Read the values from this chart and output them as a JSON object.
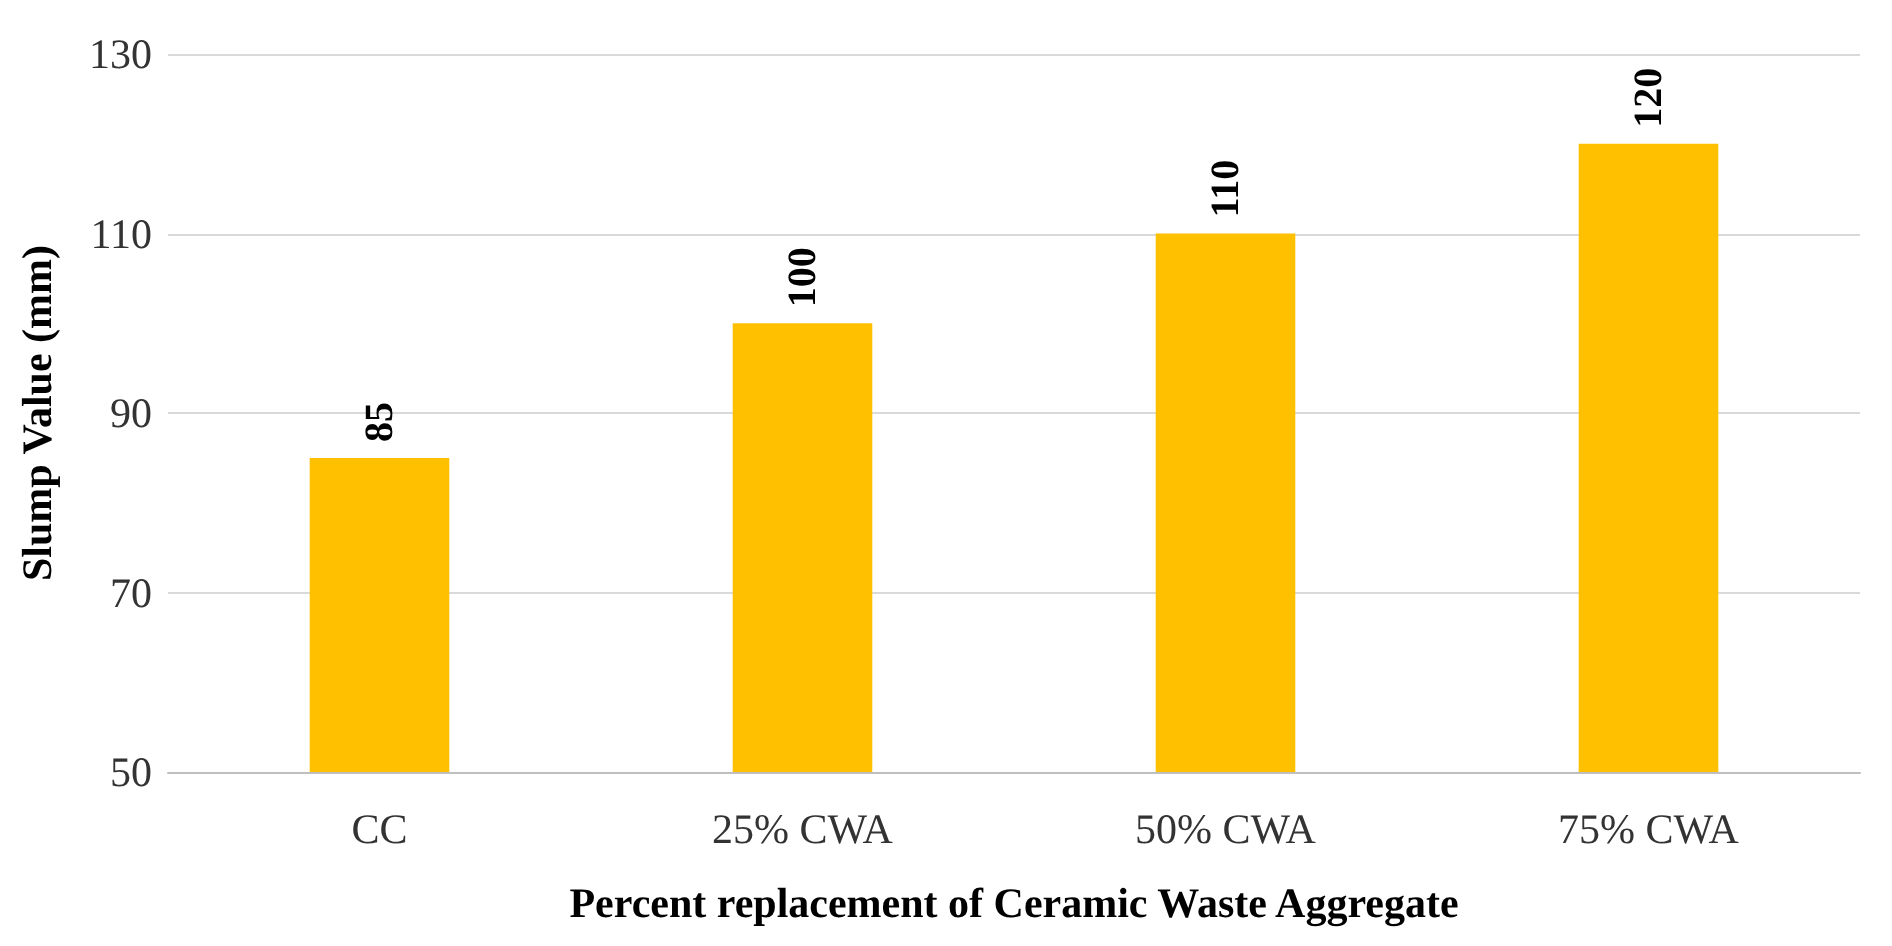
{
  "chart_data": {
    "type": "bar",
    "xlabel": "Percent replacement of Ceramic Waste Aggregate",
    "ylabel": "Slump Value (mm)",
    "categories": [
      "CC",
      "25% CWA",
      "50% CWA",
      "75% CWA"
    ],
    "values": [
      85,
      100,
      110,
      120
    ],
    "color": "#ffc000",
    "ylim": [
      50,
      130
    ],
    "yticks": [
      50,
      70,
      90,
      110,
      130
    ],
    "grid": "y",
    "data_labels": true
  }
}
